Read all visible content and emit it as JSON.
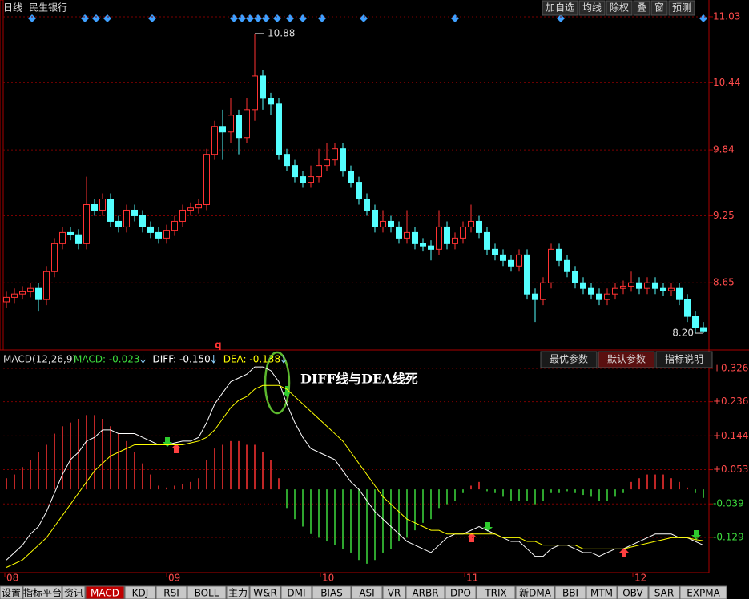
{
  "header": {
    "period": "日线",
    "stock": "民生银行",
    "buttons": [
      "加自选",
      "均线",
      "除权",
      "叠",
      "窗",
      "预测"
    ]
  },
  "chart_data": [
    {
      "type": "candlestick",
      "ylim": [
        8.05,
        11.18
      ],
      "yticks": [
        11.03,
        10.44,
        9.84,
        9.25,
        8.65
      ],
      "grid": true,
      "up_color": "#ff3232",
      "down_color": "#54ffff",
      "max_label": 10.88,
      "min_label": {
        "value": 8.2,
        "label": "8.20"
      },
      "marker": "q",
      "candles": [
        [
          8.48,
          8.57,
          8.43,
          8.52
        ],
        [
          8.52,
          8.6,
          8.47,
          8.55
        ],
        [
          8.55,
          8.62,
          8.5,
          8.57
        ],
        [
          8.57,
          8.65,
          8.52,
          8.6
        ],
        [
          8.6,
          8.65,
          8.4,
          8.5
        ],
        [
          8.5,
          8.8,
          8.45,
          8.75
        ],
        [
          8.75,
          9.05,
          8.7,
          9.0
        ],
        [
          9.0,
          9.15,
          8.95,
          9.1
        ],
        [
          9.1,
          9.15,
          9.03,
          9.08
        ],
        [
          9.08,
          9.13,
          8.95,
          9.0
        ],
        [
          9.0,
          9.6,
          8.95,
          9.35
        ],
        [
          9.35,
          9.4,
          9.25,
          9.3
        ],
        [
          9.3,
          9.45,
          9.25,
          9.4
        ],
        [
          9.4,
          9.45,
          9.15,
          9.2
        ],
        [
          9.2,
          9.25,
          9.1,
          9.15
        ],
        [
          9.15,
          9.35,
          9.1,
          9.3
        ],
        [
          9.3,
          9.35,
          9.2,
          9.25
        ],
        [
          9.25,
          9.3,
          9.1,
          9.15
        ],
        [
          9.15,
          9.2,
          9.05,
          9.1
        ],
        [
          9.1,
          9.15,
          9.0,
          9.05
        ],
        [
          9.05,
          9.17,
          9.0,
          9.12
        ],
        [
          9.12,
          9.25,
          9.07,
          9.2
        ],
        [
          9.2,
          9.35,
          9.15,
          9.3
        ],
        [
          9.3,
          9.37,
          9.25,
          9.32
        ],
        [
          9.32,
          9.4,
          9.27,
          9.35
        ],
        [
          9.35,
          9.85,
          9.3,
          9.8
        ],
        [
          9.8,
          10.1,
          9.75,
          10.05
        ],
        [
          10.05,
          10.2,
          9.75,
          10.0
        ],
        [
          10.0,
          10.3,
          9.9,
          10.15
        ],
        [
          10.15,
          10.2,
          9.8,
          9.95
        ],
        [
          9.95,
          10.3,
          9.9,
          10.2
        ],
        [
          10.2,
          10.88,
          10.1,
          10.5
        ],
        [
          10.5,
          10.55,
          10.2,
          10.3
        ],
        [
          10.3,
          10.35,
          10.15,
          10.25
        ],
        [
          10.25,
          10.3,
          9.75,
          9.8
        ],
        [
          9.8,
          9.85,
          9.65,
          9.7
        ],
        [
          9.7,
          9.75,
          9.55,
          9.6
        ],
        [
          9.6,
          9.65,
          9.5,
          9.55
        ],
        [
          9.55,
          9.7,
          9.5,
          9.6
        ],
        [
          9.6,
          9.85,
          9.55,
          9.7
        ],
        [
          9.7,
          9.9,
          9.65,
          9.75
        ],
        [
          9.75,
          9.9,
          9.7,
          9.85
        ],
        [
          9.85,
          9.9,
          9.6,
          9.65
        ],
        [
          9.65,
          9.7,
          9.5,
          9.55
        ],
        [
          9.55,
          9.6,
          9.35,
          9.4
        ],
        [
          9.4,
          9.45,
          9.25,
          9.3
        ],
        [
          9.3,
          9.35,
          9.1,
          9.15
        ],
        [
          9.15,
          9.3,
          9.1,
          9.2
        ],
        [
          9.2,
          9.25,
          9.1,
          9.15
        ],
        [
          9.15,
          9.2,
          9.0,
          9.05
        ],
        [
          9.05,
          9.3,
          9.0,
          9.1
        ],
        [
          9.1,
          9.15,
          8.95,
          9.0
        ],
        [
          9.0,
          9.05,
          8.93,
          8.98
        ],
        [
          8.98,
          9.03,
          8.85,
          8.95
        ],
        [
          8.95,
          9.3,
          8.9,
          9.15
        ],
        [
          9.15,
          9.2,
          8.95,
          9.0
        ],
        [
          9.0,
          9.1,
          8.95,
          9.05
        ],
        [
          9.05,
          9.2,
          9.0,
          9.15
        ],
        [
          9.15,
          9.35,
          9.1,
          9.2
        ],
        [
          9.2,
          9.25,
          9.05,
          9.1
        ],
        [
          9.1,
          9.15,
          8.9,
          8.95
        ],
        [
          8.95,
          9.0,
          8.85,
          8.9
        ],
        [
          8.9,
          8.95,
          8.8,
          8.85
        ],
        [
          8.85,
          8.9,
          8.75,
          8.8
        ],
        [
          8.8,
          8.95,
          8.75,
          8.9
        ],
        [
          8.9,
          8.95,
          8.5,
          8.55
        ],
        [
          8.55,
          8.6,
          8.3,
          8.5
        ],
        [
          8.5,
          8.7,
          8.45,
          8.65
        ],
        [
          8.65,
          9.0,
          8.6,
          8.95
        ],
        [
          8.95,
          9.0,
          8.8,
          8.85
        ],
        [
          8.85,
          8.9,
          8.7,
          8.75
        ],
        [
          8.75,
          8.8,
          8.6,
          8.65
        ],
        [
          8.65,
          8.7,
          8.55,
          8.6
        ],
        [
          8.6,
          8.65,
          8.5,
          8.55
        ],
        [
          8.55,
          8.6,
          8.45,
          8.5
        ],
        [
          8.5,
          8.6,
          8.45,
          8.55
        ],
        [
          8.55,
          8.65,
          8.5,
          8.6
        ],
        [
          8.6,
          8.67,
          8.55,
          8.62
        ],
        [
          8.62,
          8.75,
          8.57,
          8.65
        ],
        [
          8.65,
          8.7,
          8.55,
          8.6
        ],
        [
          8.6,
          8.7,
          8.55,
          8.65
        ],
        [
          8.65,
          8.7,
          8.55,
          8.6
        ],
        [
          8.6,
          8.65,
          8.53,
          8.58
        ],
        [
          8.58,
          8.65,
          8.53,
          8.6
        ],
        [
          8.6,
          8.65,
          8.45,
          8.5
        ],
        [
          8.5,
          8.55,
          8.3,
          8.35
        ],
        [
          8.35,
          8.4,
          8.2,
          8.25
        ],
        [
          8.25,
          8.3,
          8.2,
          8.22
        ]
      ]
    },
    {
      "type": "macd",
      "title": "MACD(12,26,9)",
      "ylim": [
        -0.224,
        0.369
      ],
      "yticks": [
        {
          "value": 0.326,
          "label": "+0.326"
        },
        {
          "value": 0.236,
          "label": "+0.236"
        },
        {
          "value": 0.144,
          "label": "+0.144"
        },
        {
          "value": 0.053,
          "label": "+0.053"
        },
        -0.039,
        -0.129
      ],
      "buttons": [
        "最优参数",
        "默认参数",
        "指标说明"
      ],
      "annotation": "DIFF线与DEA线死",
      "x_labels": [
        "08",
        "09",
        "10",
        "11",
        "12"
      ],
      "series": [
        {
          "name": "MACD",
          "legend": "MACD: -0.023",
          "color": "#ff3232",
          "down_color": "#3ddc3d",
          "values": [
            0.03,
            0.04,
            0.06,
            0.08,
            0.1,
            0.12,
            0.15,
            0.17,
            0.18,
            0.19,
            0.2,
            0.2,
            0.19,
            0.17,
            0.15,
            0.13,
            0.1,
            0.07,
            0.04,
            0.01,
            0.005,
            0.01,
            0.015,
            0.02,
            0.03,
            0.08,
            0.11,
            0.12,
            0.13,
            0.13,
            0.12,
            0.12,
            0.1,
            0.08,
            0.03,
            -0.05,
            -0.08,
            -0.1,
            -0.12,
            -0.13,
            -0.14,
            -0.15,
            -0.16,
            -0.17,
            -0.19,
            -0.2,
            -0.19,
            -0.17,
            -0.16,
            -0.14,
            -0.13,
            -0.11,
            -0.09,
            -0.08,
            -0.05,
            -0.04,
            -0.03,
            -0.01,
            0.01,
            0.02,
            -0.005,
            -0.01,
            -0.02,
            -0.03,
            -0.03,
            -0.03,
            -0.04,
            -0.03,
            -0.01,
            -0.01,
            -0.005,
            -0.01,
            -0.015,
            -0.02,
            -0.03,
            -0.03,
            -0.02,
            -0.01,
            0.02,
            0.03,
            0.04,
            0.04,
            0.04,
            0.03,
            0.02,
            0.005,
            -0.01,
            -0.023
          ]
        },
        {
          "name": "DIFF",
          "legend": "DIFF: -0.150",
          "color": "#ffffff",
          "values": [
            -0.19,
            -0.17,
            -0.15,
            -0.12,
            -0.1,
            -0.06,
            -0.01,
            0.04,
            0.08,
            0.1,
            0.13,
            0.14,
            0.16,
            0.16,
            0.15,
            0.15,
            0.15,
            0.14,
            0.13,
            0.12,
            0.12,
            0.125,
            0.13,
            0.13,
            0.14,
            0.18,
            0.23,
            0.26,
            0.29,
            0.3,
            0.31,
            0.33,
            0.33,
            0.32,
            0.29,
            0.23,
            0.18,
            0.14,
            0.11,
            0.1,
            0.09,
            0.08,
            0.05,
            0.02,
            0.0,
            -0.03,
            -0.06,
            -0.08,
            -0.1,
            -0.12,
            -0.14,
            -0.15,
            -0.16,
            -0.17,
            -0.15,
            -0.13,
            -0.12,
            -0.12,
            -0.11,
            -0.1,
            -0.11,
            -0.12,
            -0.13,
            -0.14,
            -0.14,
            -0.16,
            -0.18,
            -0.18,
            -0.16,
            -0.15,
            -0.15,
            -0.16,
            -0.17,
            -0.17,
            -0.18,
            -0.17,
            -0.16,
            -0.16,
            -0.15,
            -0.14,
            -0.13,
            -0.12,
            -0.12,
            -0.12,
            -0.13,
            -0.13,
            -0.14,
            -0.15
          ]
        },
        {
          "name": "DEA",
          "legend": "DEA: -0.138",
          "color": "#ffff00",
          "values": [
            -0.21,
            -0.2,
            -0.19,
            -0.17,
            -0.15,
            -0.13,
            -0.1,
            -0.07,
            -0.04,
            -0.01,
            0.02,
            0.05,
            0.07,
            0.09,
            0.1,
            0.11,
            0.12,
            0.12,
            0.12,
            0.12,
            0.12,
            0.12,
            0.12,
            0.125,
            0.13,
            0.14,
            0.16,
            0.19,
            0.22,
            0.24,
            0.25,
            0.27,
            0.28,
            0.28,
            0.28,
            0.27,
            0.25,
            0.23,
            0.21,
            0.19,
            0.17,
            0.15,
            0.13,
            0.1,
            0.07,
            0.04,
            0.01,
            -0.02,
            -0.04,
            -0.06,
            -0.08,
            -0.09,
            -0.1,
            -0.11,
            -0.11,
            -0.12,
            -0.12,
            -0.12,
            -0.12,
            -0.12,
            -0.12,
            -0.12,
            -0.13,
            -0.13,
            -0.13,
            -0.14,
            -0.14,
            -0.15,
            -0.15,
            -0.15,
            -0.15,
            -0.15,
            -0.16,
            -0.16,
            -0.16,
            -0.16,
            -0.16,
            -0.16,
            -0.155,
            -0.15,
            -0.145,
            -0.14,
            -0.135,
            -0.13,
            -0.13,
            -0.13,
            -0.135,
            -0.138
          ]
        }
      ]
    }
  ],
  "tabs": [
    "设置",
    "指标平台",
    "资讯",
    "MACD",
    "KDJ",
    "RSI",
    "BOLL",
    "主力",
    "W&R",
    "DMI",
    "BIAS",
    "ASI",
    "VR",
    "ARBR",
    "DPO",
    "TRIX",
    "新DMA",
    "BBI",
    "MTM",
    "OBV",
    "SAR",
    "EXPMA"
  ],
  "active_tab": 3
}
